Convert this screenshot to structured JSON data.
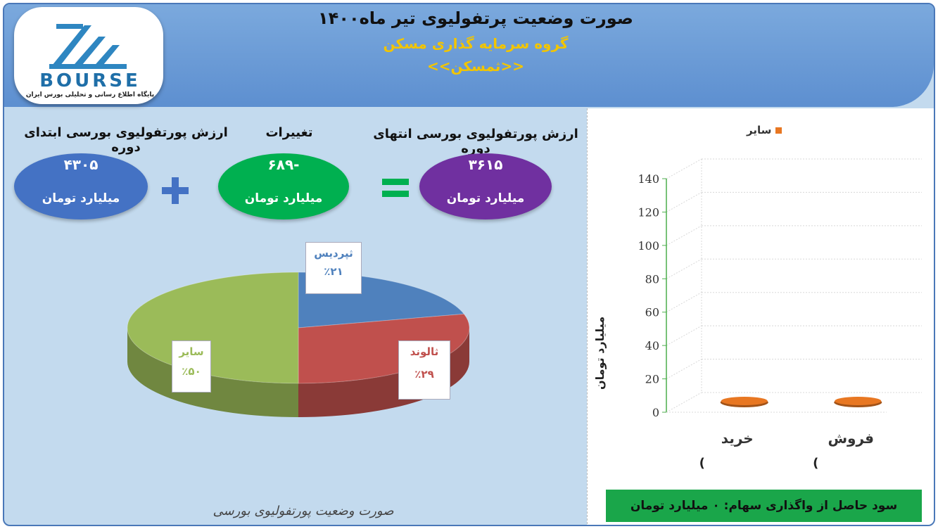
{
  "header": {
    "title": "صورت وضعیت پرتفولیوی تیر ماه۱۴۰۰",
    "subtitle": "گروه سرمایه گذاری مسکن",
    "symbol": "<<ثمسکن>>",
    "logo_text": "BOURSE",
    "logo_subtitle": "پایگاه اطلاع رسانی و تحلیلی بورس ایران"
  },
  "summary": {
    "start": {
      "label": "ارزش پورتفولیوی بورسی ابتدای دوره",
      "value": "۴۳۰۵",
      "unit": "میلیارد تومان",
      "color": "#4472c4"
    },
    "change": {
      "label": "تغییرات",
      "value": "-۶۸۹",
      "unit": "میلیارد تومان",
      "color": "#00b050"
    },
    "end": {
      "label": "ارزش پورتفولیوی بورسی انتهای دوره",
      "value": "۳۶۱۵",
      "unit": "میلیارد تومان",
      "color": "#7030a0"
    }
  },
  "pie_footer": "صورت وضعیت پورتفولیوی بورسی",
  "profit_note": "سود حاصل از واگذاری سهام: ۰ میلیارد تومان",
  "chart_data": [
    {
      "type": "pie",
      "title": "",
      "slices": [
        {
          "label": "ثپردیس",
          "value": 21,
          "display": "٪۲۱",
          "color": "#4f81bd"
        },
        {
          "label": "ثالوند",
          "value": 29,
          "display": "٪۲۹",
          "color": "#c0504d"
        },
        {
          "label": "سایر",
          "value": 50,
          "display": "٪۵۰",
          "color": "#9bbb59"
        }
      ]
    },
    {
      "type": "bar",
      "title": "",
      "categories": [
        "خرید",
        "فروش"
      ],
      "category_suffix": "(",
      "series": [
        {
          "name": "سایر",
          "values": [
            0,
            0
          ],
          "color": "#e87722"
        }
      ],
      "ylabel": "میلیارد تومان",
      "ylim": [
        0,
        140
      ],
      "yticks": [
        0,
        20,
        40,
        60,
        80,
        100,
        120,
        140
      ],
      "grid": true,
      "legend": "top"
    }
  ]
}
